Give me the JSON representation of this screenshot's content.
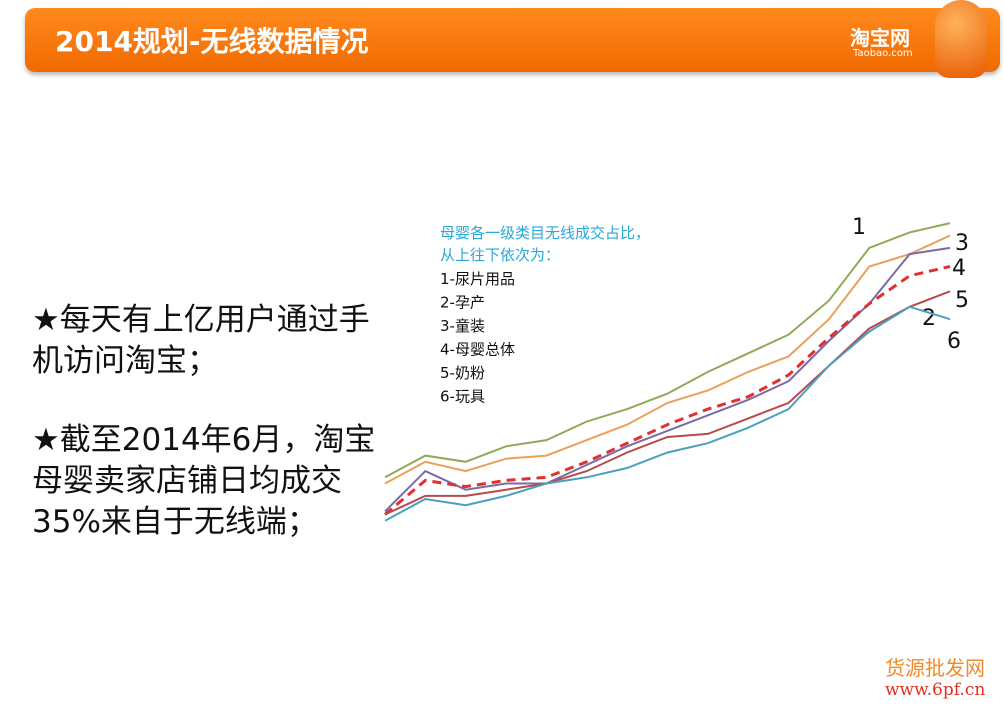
{
  "header": {
    "title": "2014规划-无线数据情况",
    "logo": "淘宝网",
    "logo_sub": "Taobao.com"
  },
  "bullets": [
    "★每天有上亿用户通过手机访问淘宝；",
    "★截至2014年6月，淘宝母婴卖家店铺日均成交35%来自于无线端；"
  ],
  "chart_data": {
    "type": "line",
    "title": "母婴各一级类目无线成交占比，",
    "subtitle": "从上往下依次为：",
    "legend_items": [
      "1-尿片用品",
      "2-孕产",
      "3-童装",
      "4-母婴总体",
      "5-奶粉",
      "6-玩具"
    ],
    "x": [
      1,
      2,
      3,
      4,
      5,
      6,
      7,
      8,
      9,
      10,
      11,
      12,
      13,
      14,
      15
    ],
    "xlim": [
      1,
      15
    ],
    "ylim": [
      0,
      100
    ],
    "series": [
      {
        "name": "1",
        "color": "#8faa58",
        "values": [
          17,
          24,
          22,
          27,
          29,
          35,
          39,
          44,
          51,
          57,
          63,
          74,
          91,
          96,
          99
        ]
      },
      {
        "name": "2",
        "color": "#e9a15a",
        "values": [
          15,
          22,
          19,
          23,
          24,
          29,
          34,
          41,
          45,
          51,
          56,
          68,
          85,
          89,
          95
        ]
      },
      {
        "name": "3",
        "color": "#7a6aa6",
        "values": [
          6,
          19,
          13,
          15,
          15,
          21,
          27,
          32,
          37,
          42,
          48,
          61,
          73,
          89,
          91
        ]
      },
      {
        "name": "4",
        "color": "#e03030",
        "dashed": true,
        "values": [
          5,
          16,
          14,
          16,
          17,
          22,
          28,
          34,
          39,
          43,
          50,
          62,
          73,
          82,
          85
        ]
      },
      {
        "name": "5",
        "color": "#b84a4a",
        "values": [
          5,
          11,
          11,
          13,
          15,
          19,
          25,
          30,
          31,
          36,
          41,
          53,
          65,
          72,
          77
        ]
      },
      {
        "name": "6",
        "color": "#4aa0c0",
        "values": [
          3,
          10,
          8,
          11,
          15,
          17,
          20,
          25,
          28,
          33,
          39,
          53,
          64,
          72,
          68
        ]
      }
    ]
  },
  "watermark": {
    "line1": "货源批发网",
    "line2": "www.6pf.cn"
  }
}
